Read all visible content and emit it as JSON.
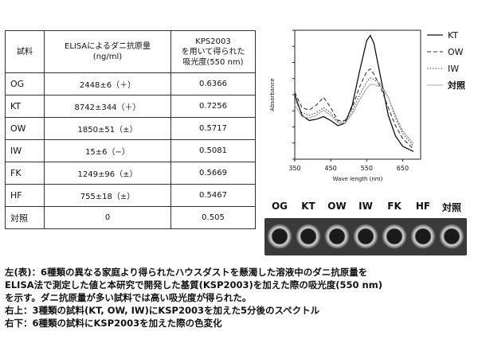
{
  "table": {
    "headers": [
      "試料",
      "ELISAによるダニ抗原量\n(ng/ml)",
      "KPS2003\nを用いて得られた\n吸光度(550 nm)"
    ],
    "rows": [
      {
        "sample": "OG",
        "elisa": "2448±6（＋）",
        "absorbance": "0.6366"
      },
      {
        "sample": "KT",
        "elisa": "8742±344（＋）",
        "absorbance": "0.7256"
      },
      {
        "sample": "OW",
        "elisa": "1850±51（±）",
        "absorbance": "0.5717"
      },
      {
        "sample": "IW",
        "elisa": "15±6（−）",
        "absorbance": "0.5081"
      },
      {
        "sample": "FK",
        "elisa": "1249±96（±）",
        "absorbance": "0.5669"
      },
      {
        "sample": "HF",
        "elisa": "755±18（±）",
        "absorbance": "0.5467"
      },
      {
        "sample": "対照",
        "elisa": "0",
        "absorbance": "0.505"
      }
    ]
  },
  "chart_data": {
    "type": "line",
    "xlabel": "Wave length (nm)",
    "ylabel": "Absorbance",
    "xlim": [
      350,
      700
    ],
    "x_ticks": [
      350,
      450,
      550,
      650
    ],
    "series": [
      {
        "name": "KT",
        "style": "solid",
        "x": [
          350,
          370,
          390,
          410,
          430,
          450,
          470,
          490,
          510,
          530,
          550,
          560,
          570,
          590,
          610,
          630,
          650,
          680
        ],
        "y": [
          0.5,
          0.34,
          0.3,
          0.31,
          0.33,
          0.3,
          0.26,
          0.28,
          0.42,
          0.68,
          0.92,
          0.96,
          0.9,
          0.62,
          0.34,
          0.18,
          0.1,
          0.06
        ]
      },
      {
        "name": "OW",
        "style": "dashed",
        "x": [
          350,
          370,
          390,
          410,
          430,
          450,
          470,
          490,
          510,
          530,
          550,
          560,
          570,
          590,
          610,
          630,
          650,
          680
        ],
        "y": [
          0.52,
          0.4,
          0.38,
          0.42,
          0.48,
          0.4,
          0.3,
          0.3,
          0.4,
          0.56,
          0.68,
          0.7,
          0.66,
          0.55,
          0.4,
          0.26,
          0.16,
          0.08
        ]
      },
      {
        "name": "IW",
        "style": "dotted",
        "x": [
          350,
          370,
          390,
          410,
          430,
          450,
          470,
          490,
          510,
          530,
          550,
          560,
          570,
          590,
          610,
          630,
          650,
          680
        ],
        "y": [
          0.46,
          0.36,
          0.34,
          0.36,
          0.4,
          0.36,
          0.29,
          0.29,
          0.37,
          0.5,
          0.6,
          0.63,
          0.62,
          0.58,
          0.48,
          0.32,
          0.2,
          0.1
        ]
      },
      {
        "name": "対照",
        "style": "faint",
        "x": [
          350,
          370,
          390,
          410,
          430,
          450,
          470,
          490,
          510,
          530,
          550,
          560,
          570,
          590,
          610,
          630,
          650,
          680
        ],
        "y": [
          0.42,
          0.33,
          0.32,
          0.34,
          0.38,
          0.34,
          0.28,
          0.28,
          0.35,
          0.46,
          0.55,
          0.58,
          0.58,
          0.56,
          0.48,
          0.34,
          0.22,
          0.12
        ]
      }
    ]
  },
  "plate": {
    "labels": [
      "OG",
      "KT",
      "OW",
      "IW",
      "FK",
      "HF",
      "対照"
    ]
  },
  "caption": {
    "lines": [
      "左(表)：6種類の異なる家庭より得られたハウスダストを懸濁した溶液中のダニ抗原量を",
      "ELISA法で測定した値と本研究で開発した基質(KSP2003)を加えた際の吸光度(550 nm)",
      "を示す。ダニ抗原量が多い試料では高い吸光度が得られた。",
      "右上：3種類の試料(KT, OW, IW)にKSP2003を加えた5分後のスペクトル",
      "右下：6種類の試料にKSP2003を加えた際の色変化"
    ]
  }
}
